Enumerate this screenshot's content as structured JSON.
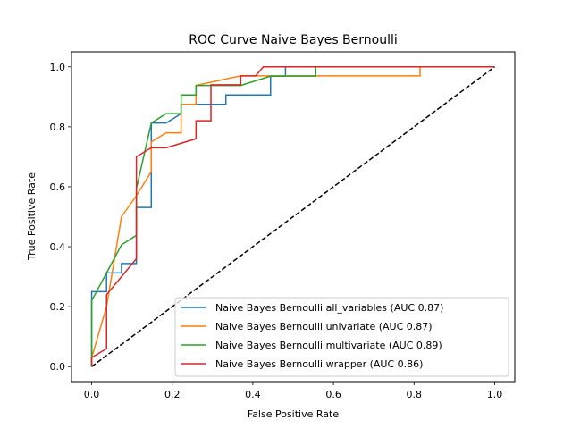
{
  "chart_data": {
    "type": "line",
    "title": "ROC Curve Naive Bayes Bernoulli",
    "xlabel": "False Positive Rate",
    "ylabel": "True Positive Rate",
    "xlim": [
      -0.05,
      1.05
    ],
    "ylim": [
      -0.05,
      1.05
    ],
    "xticks": [
      "0.0",
      "0.2",
      "0.4",
      "0.6",
      "0.8",
      "1.0"
    ],
    "yticks": [
      "0.0",
      "0.2",
      "0.4",
      "0.6",
      "0.8",
      "1.0"
    ],
    "grid": false,
    "legend_position": "lower-right",
    "diagonal": {
      "style": "dashed",
      "color": "#000000",
      "points": [
        [
          0,
          0
        ],
        [
          1,
          1
        ]
      ]
    },
    "series": [
      {
        "name": "Naive Bayes Bernoulli all_variables (AUC 0.87)",
        "color": "#1f77b4",
        "points": [
          [
            0,
            0
          ],
          [
            0,
            0.25
          ],
          [
            0.037,
            0.25
          ],
          [
            0.037,
            0.3125
          ],
          [
            0.074,
            0.3125
          ],
          [
            0.074,
            0.344
          ],
          [
            0.111,
            0.344
          ],
          [
            0.111,
            0.531
          ],
          [
            0.148,
            0.531
          ],
          [
            0.148,
            0.8125
          ],
          [
            0.185,
            0.8125
          ],
          [
            0.222,
            0.844
          ],
          [
            0.222,
            0.875
          ],
          [
            0.333,
            0.875
          ],
          [
            0.333,
            0.906
          ],
          [
            0.444,
            0.906
          ],
          [
            0.444,
            0.969
          ],
          [
            0.481,
            0.969
          ],
          [
            0.481,
            1.0
          ],
          [
            1.0,
            1.0
          ]
        ]
      },
      {
        "name": "Naive Bayes Bernoulli univariate (AUC 0.87)",
        "color": "#ff7f0e",
        "points": [
          [
            0,
            0
          ],
          [
            0,
            0.03
          ],
          [
            0.037,
            0.2
          ],
          [
            0.074,
            0.5
          ],
          [
            0.111,
            0.57
          ],
          [
            0.148,
            0.65
          ],
          [
            0.148,
            0.75
          ],
          [
            0.185,
            0.78
          ],
          [
            0.222,
            0.78
          ],
          [
            0.222,
            0.875
          ],
          [
            0.259,
            0.875
          ],
          [
            0.259,
            0.938
          ],
          [
            0.37,
            0.97
          ],
          [
            0.815,
            0.97
          ],
          [
            0.815,
            1.0
          ],
          [
            1.0,
            1.0
          ]
        ]
      },
      {
        "name": "Naive Bayes Bernoulli multivariate (AUC 0.89)",
        "color": "#2ca02c",
        "points": [
          [
            0,
            0
          ],
          [
            0,
            0.22
          ],
          [
            0.037,
            0.3125
          ],
          [
            0.074,
            0.406
          ],
          [
            0.111,
            0.438
          ],
          [
            0.111,
            0.594
          ],
          [
            0.148,
            0.8125
          ],
          [
            0.185,
            0.844
          ],
          [
            0.222,
            0.844
          ],
          [
            0.222,
            0.906
          ],
          [
            0.259,
            0.906
          ],
          [
            0.259,
            0.938
          ],
          [
            0.37,
            0.938
          ],
          [
            0.444,
            0.969
          ],
          [
            0.556,
            0.969
          ],
          [
            0.556,
            1.0
          ],
          [
            1.0,
            1.0
          ]
        ]
      },
      {
        "name": "Naive Bayes Bernoulli wrapper (AUC 0.86)",
        "color": "#d62728",
        "points": [
          [
            0,
            0
          ],
          [
            0,
            0.03
          ],
          [
            0.037,
            0.06
          ],
          [
            0.037,
            0.24
          ],
          [
            0.074,
            0.3
          ],
          [
            0.111,
            0.36
          ],
          [
            0.111,
            0.7
          ],
          [
            0.148,
            0.73
          ],
          [
            0.185,
            0.73
          ],
          [
            0.259,
            0.76
          ],
          [
            0.259,
            0.82
          ],
          [
            0.296,
            0.82
          ],
          [
            0.296,
            0.94
          ],
          [
            0.37,
            0.94
          ],
          [
            0.37,
            0.97
          ],
          [
            0.407,
            0.97
          ],
          [
            0.426,
            1.0
          ],
          [
            1.0,
            1.0
          ]
        ]
      }
    ]
  }
}
